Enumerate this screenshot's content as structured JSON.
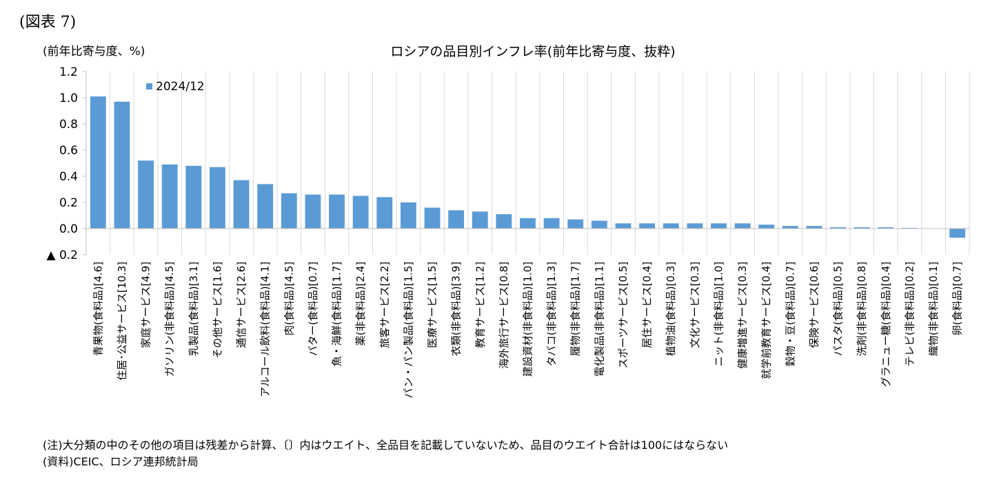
{
  "figure_label": "(図表 7)",
  "notes": {
    "note": "(注)大分類の中のその他の項目は残差から計算、〔〕内はウエイト、全品目を記載していないため、品目のウエイト合計は100にはならない",
    "source": "(資料)CEIC、ロシア連邦統計局"
  },
  "chart_data": {
    "type": "bar",
    "title": "ロシアの品目別インフレ率(前年比寄与度、抜粋)",
    "ylabel": "(前年比寄与度、%)",
    "xlabel": "",
    "ylim": [
      -0.2,
      1.2
    ],
    "yticks": [
      1.2,
      1.0,
      0.8,
      0.6,
      0.4,
      0.2,
      0.0,
      -0.2
    ],
    "ytick_labels": [
      "1.2",
      "1.0",
      "0.8",
      "0.6",
      "0.4",
      "0.2",
      "0.0",
      "▲ 0.2"
    ],
    "grid": "vertical",
    "legend_position": "top-left",
    "bar_color": "#5b9bd5",
    "categories": [
      "青果物(食料品)[4.6]",
      "住居･公益サービス[10.3]",
      "家庭サービス[4.9]",
      "ガソリン(非食料品)[4.5]",
      "乳製品(食料品)[3.1]",
      "その他サービス[1.6]",
      "通信サービス[2.6]",
      "アルコール飲料(食料品)[4.1]",
      "肉(食料品)[4.5]",
      "バター(食料品)[0.7]",
      "魚・海鮮(食料品)[1.7]",
      "薬(非食料品)[2.4]",
      "旅客サービス[2.2]",
      "パン・パン製品(食料品)[1.5]",
      "医療サービス[1.5]",
      "衣類(非食料品)[3.9]",
      "教育サービス[1.2]",
      "海外旅行サービス[0.8]",
      "建設資材(非食料品)[1.0]",
      "タバコ(非食料品)[1.3]",
      "履物(非食料品)[1.7]",
      "電化製品(非食料品)[1.1]",
      "スポーツサービス[0.5]",
      "居住サービス[0.4]",
      "植物油(食料品)[0.3]",
      "文化サービス[0.3]",
      "ニット(非食料品)[1.0]",
      "健康増進サービス[0.3]",
      "就学前教育サービス[0.4]",
      "穀物・豆(食料品)[0.7]",
      "保険サービス[0.6]",
      "パスタ(食料品)[0.5]",
      "洗剤(非食料品)[0.8]",
      "グラニュー糖(食料品)[0.4]",
      "テレビ(非食料品)[0.2]",
      "織物(非食料品)[0.1]",
      "卵(食料品)[0.7]"
    ],
    "series": [
      {
        "name": "2024/12",
        "values": [
          1.01,
          0.97,
          0.52,
          0.49,
          0.48,
          0.47,
          0.37,
          0.34,
          0.27,
          0.26,
          0.26,
          0.25,
          0.24,
          0.2,
          0.16,
          0.14,
          0.13,
          0.11,
          0.08,
          0.08,
          0.07,
          0.06,
          0.04,
          0.04,
          0.04,
          0.04,
          0.04,
          0.04,
          0.03,
          0.02,
          0.02,
          0.01,
          0.01,
          0.01,
          0.005,
          0.0,
          -0.07
        ]
      }
    ]
  }
}
